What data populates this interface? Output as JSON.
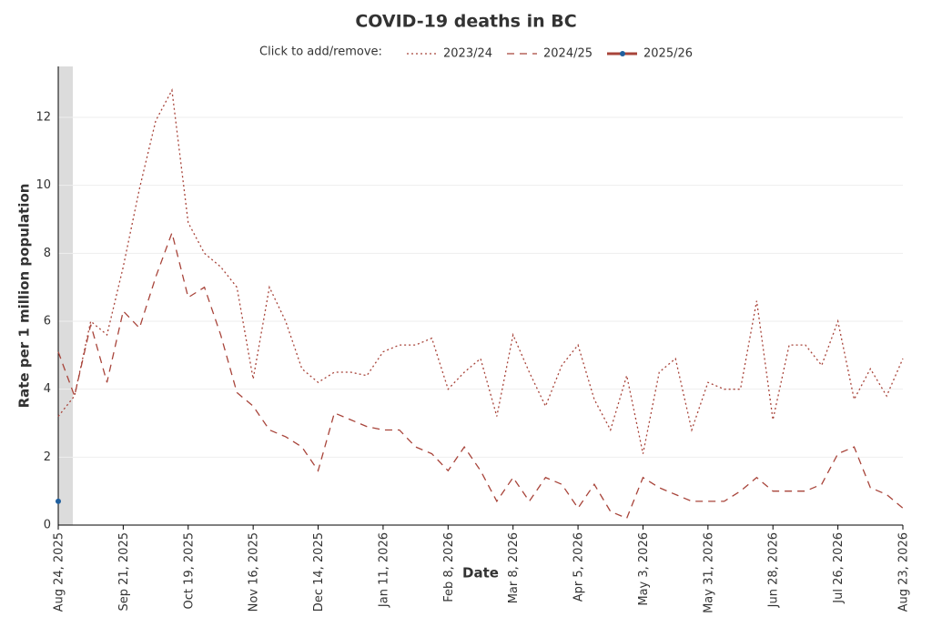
{
  "chart_data": {
    "type": "line",
    "title": "COVID-19 deaths in BC",
    "legend_prompt": "Click to add/remove:",
    "x_label": "Date",
    "y_label": "Rate per 1 million population",
    "x": [
      "2025-08-24",
      "2025-08-31",
      "2025-09-07",
      "2025-09-14",
      "2025-09-21",
      "2025-09-28",
      "2025-10-05",
      "2025-10-12",
      "2025-10-19",
      "2025-10-26",
      "2025-11-02",
      "2025-11-09",
      "2025-11-16",
      "2025-11-23",
      "2025-11-30",
      "2025-12-07",
      "2025-12-14",
      "2025-12-21",
      "2025-12-28",
      "2026-01-04",
      "2026-01-11",
      "2026-01-18",
      "2026-01-25",
      "2026-02-01",
      "2026-02-08",
      "2026-02-15",
      "2026-02-22",
      "2026-03-01",
      "2026-03-08",
      "2026-03-15",
      "2026-03-22",
      "2026-03-29",
      "2026-04-05",
      "2026-04-12",
      "2026-04-19",
      "2026-04-26",
      "2026-05-03",
      "2026-05-10",
      "2026-05-17",
      "2026-05-24",
      "2026-05-31",
      "2026-06-07",
      "2026-06-14",
      "2026-06-21",
      "2026-06-28",
      "2026-07-05",
      "2026-07-12",
      "2026-07-19",
      "2026-07-26",
      "2026-08-02",
      "2026-08-09",
      "2026-08-16",
      "2026-08-23"
    ],
    "xlim": [
      "2025-08-24",
      "2026-08-23"
    ],
    "xticks": [
      {
        "value": "2025-08-24",
        "label": "Aug 24, 2025"
      },
      {
        "value": "2025-09-21",
        "label": "Sep 21, 2025"
      },
      {
        "value": "2025-10-19",
        "label": "Oct 19, 2025"
      },
      {
        "value": "2025-11-16",
        "label": "Nov 16, 2025"
      },
      {
        "value": "2025-12-14",
        "label": "Dec 14, 2025"
      },
      {
        "value": "2026-01-11",
        "label": "Jan 11, 2026"
      },
      {
        "value": "2026-02-08",
        "label": "Feb 8, 2026"
      },
      {
        "value": "2026-03-08",
        "label": "Mar 8, 2026"
      },
      {
        "value": "2026-04-05",
        "label": "Apr 5, 2026"
      },
      {
        "value": "2026-05-03",
        "label": "May 3, 2026"
      },
      {
        "value": "2026-05-31",
        "label": "May 31, 2026"
      },
      {
        "value": "2026-06-28",
        "label": "Jun 28, 2026"
      },
      {
        "value": "2026-07-26",
        "label": "Jul 26, 2026"
      },
      {
        "value": "2026-08-23",
        "label": "Aug 23, 2026"
      }
    ],
    "ylim": [
      0,
      13.5
    ],
    "yticks": [
      0,
      2,
      4,
      6,
      8,
      10,
      12
    ],
    "grid": true,
    "series": [
      {
        "name": "2023/24",
        "color": "#a8443a",
        "dash": "2,3",
        "values": [
          3.2,
          3.8,
          6.0,
          5.6,
          7.6,
          9.9,
          11.9,
          12.8,
          8.9,
          8.0,
          7.6,
          7.0,
          4.3,
          7.0,
          6.0,
          4.6,
          4.2,
          4.5,
          4.5,
          4.4,
          5.1,
          5.3,
          5.3,
          5.5,
          4.0,
          4.5,
          4.9,
          3.2,
          5.6,
          4.5,
          3.5,
          4.7,
          5.3,
          3.7,
          2.8,
          4.4,
          2.1,
          4.5,
          4.9,
          2.8,
          4.2,
          4.0,
          4.0,
          6.6,
          3.1,
          5.3,
          5.3,
          4.7,
          6.0,
          3.7,
          4.6,
          3.8,
          4.9
        ]
      },
      {
        "name": "2024/25",
        "color": "#a8443a",
        "dash": "8,6",
        "values": [
          5.1,
          3.8,
          5.9,
          4.2,
          6.3,
          5.8,
          7.3,
          8.6,
          6.7,
          7.0,
          5.6,
          3.9,
          3.5,
          2.8,
          2.6,
          2.3,
          1.6,
          3.3,
          3.1,
          2.9,
          2.8,
          2.8,
          2.3,
          2.1,
          1.6,
          2.3,
          1.6,
          0.7,
          1.4,
          0.7,
          1.4,
          1.2,
          0.5,
          1.2,
          0.4,
          0.2,
          1.4,
          1.1,
          0.9,
          0.7,
          0.7,
          0.7,
          1.0,
          1.4,
          1.0,
          1.0,
          1.0,
          1.2,
          2.1,
          2.3,
          1.1,
          0.9,
          0.5
        ]
      },
      {
        "name": "2025/26",
        "color": "#a8443a",
        "marker_color": "#1f5f9e",
        "values": [
          0.7,
          null,
          null,
          null,
          null,
          null,
          null,
          null,
          null,
          null,
          null,
          null,
          null,
          null,
          null,
          null,
          null,
          null,
          null,
          null,
          null,
          null,
          null,
          null,
          null,
          null,
          null,
          null,
          null,
          null,
          null,
          null,
          null,
          null,
          null,
          null,
          null,
          null,
          null,
          null,
          null,
          null,
          null,
          null,
          null,
          null,
          null,
          null,
          null,
          null,
          null,
          null,
          null
        ]
      }
    ]
  }
}
